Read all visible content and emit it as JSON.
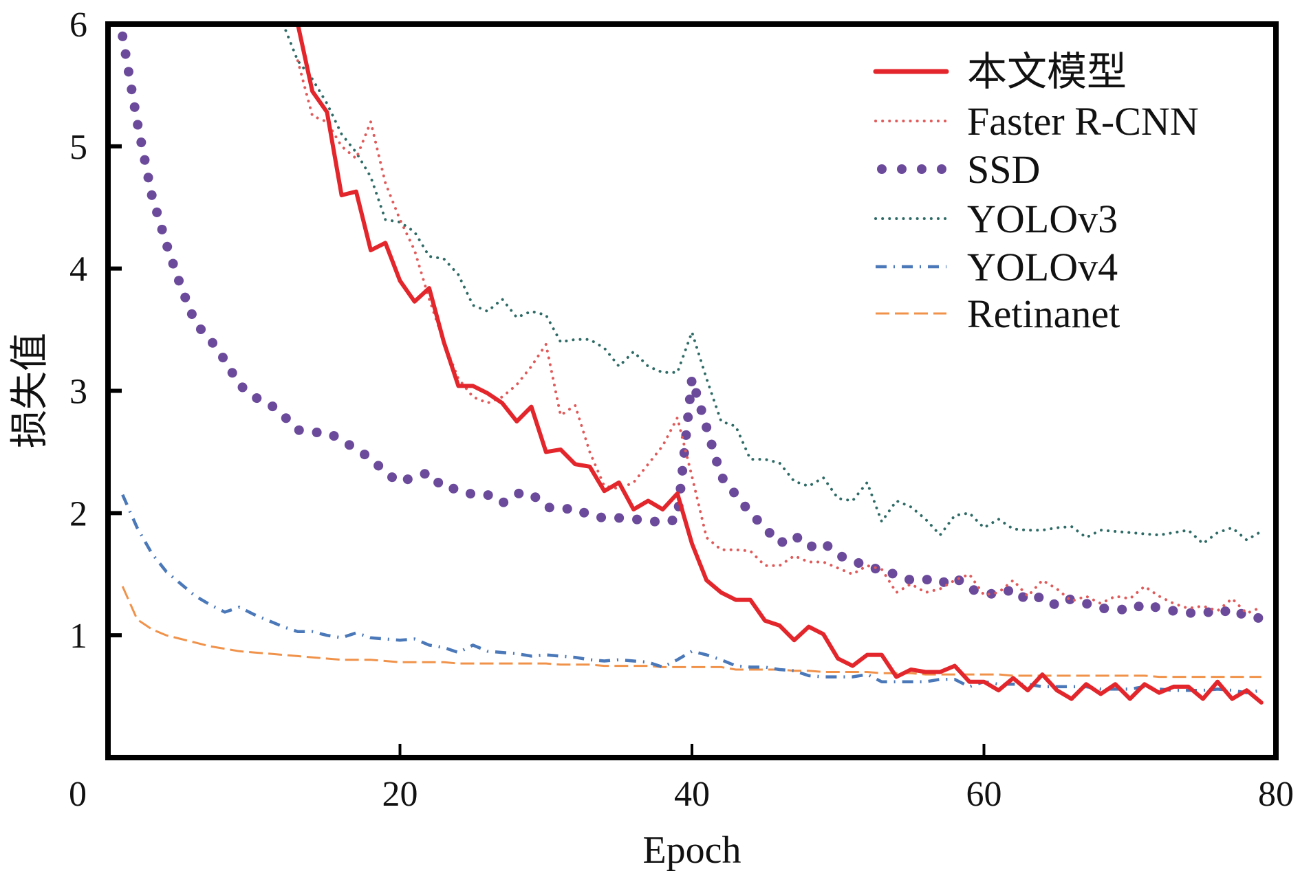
{
  "chart_data": {
    "type": "line",
    "title": "",
    "xlabel": "Epoch",
    "ylabel": "损失值",
    "xlim": [
      0,
      80
    ],
    "ylim": [
      0,
      6
    ],
    "xticks": [
      0,
      20,
      40,
      60,
      80
    ],
    "yticks": [
      1,
      2,
      3,
      4,
      5,
      6
    ],
    "grid": false,
    "legend_position": "top-right",
    "x": [
      1,
      2,
      3,
      4,
      5,
      6,
      7,
      8,
      9,
      10,
      11,
      12,
      13,
      14,
      15,
      16,
      17,
      18,
      19,
      20,
      21,
      22,
      23,
      24,
      25,
      26,
      27,
      28,
      29,
      30,
      31,
      32,
      33,
      34,
      35,
      36,
      37,
      38,
      39,
      40,
      41,
      42,
      43,
      44,
      45,
      46,
      47,
      48,
      49,
      50,
      51,
      52,
      53,
      54,
      55,
      56,
      57,
      58,
      59,
      60,
      61,
      62,
      63,
      64,
      65,
      66,
      67,
      68,
      69,
      70,
      71,
      72,
      73,
      74,
      75,
      76,
      77,
      78,
      79
    ],
    "series": [
      {
        "name": "本文模型",
        "color": "#e3262b",
        "style": "solid",
        "values": [
          null,
          null,
          null,
          null,
          null,
          null,
          null,
          null,
          null,
          null,
          null,
          null,
          6.0,
          5.45,
          5.28,
          4.6,
          4.63,
          4.15,
          4.21,
          3.9,
          3.73,
          3.84,
          3.4,
          3.04,
          3.04,
          2.98,
          2.9,
          2.75,
          2.87,
          2.5,
          2.52,
          2.4,
          2.38,
          2.18,
          2.25,
          2.03,
          2.1,
          2.03,
          2.16,
          1.75,
          1.45,
          1.35,
          1.29,
          1.29,
          1.12,
          1.08,
          0.96,
          1.07,
          1.01,
          0.81,
          0.75,
          0.84,
          0.84,
          0.66,
          0.72,
          0.7,
          0.7,
          0.75,
          0.62,
          0.62,
          0.55,
          0.65,
          0.55,
          0.68,
          0.55,
          0.48,
          0.6,
          0.52,
          0.6,
          0.48,
          0.6,
          0.53,
          0.58,
          0.58,
          0.48,
          0.62,
          0.48,
          0.55,
          0.45
        ]
      },
      {
        "name": "Faster R-CNN",
        "color": "#e05a5a",
        "style": "dotted",
        "values": [
          null,
          null,
          null,
          null,
          null,
          null,
          null,
          null,
          null,
          null,
          null,
          null,
          5.7,
          5.25,
          5.2,
          5.0,
          4.9,
          5.2,
          4.7,
          4.4,
          4.15,
          3.75,
          3.4,
          3.1,
          2.95,
          2.9,
          2.95,
          3.05,
          3.2,
          3.38,
          2.8,
          2.88,
          2.5,
          2.22,
          2.2,
          2.25,
          2.4,
          2.55,
          2.78,
          2.3,
          1.8,
          1.7,
          1.7,
          1.69,
          1.57,
          1.57,
          1.65,
          1.6,
          1.6,
          1.55,
          1.5,
          1.57,
          1.54,
          1.35,
          1.42,
          1.35,
          1.38,
          1.45,
          1.5,
          1.33,
          1.35,
          1.45,
          1.32,
          1.45,
          1.38,
          1.28,
          1.32,
          1.26,
          1.32,
          1.3,
          1.4,
          1.32,
          1.26,
          1.22,
          1.24,
          1.2,
          1.3,
          1.18,
          1.23
        ]
      },
      {
        "name": "SSD",
        "color": "#6b4a9b",
        "style": "large-dots",
        "values": [
          5.9,
          5.2,
          4.6,
          4.2,
          3.85,
          3.55,
          3.42,
          3.25,
          3.05,
          2.95,
          2.9,
          2.8,
          2.68,
          2.66,
          2.66,
          2.6,
          2.52,
          2.45,
          2.33,
          2.25,
          2.3,
          2.33,
          2.2,
          2.2,
          2.15,
          2.15,
          2.08,
          2.16,
          2.16,
          2.05,
          2.03,
          2.04,
          1.98,
          1.96,
          1.96,
          1.95,
          1.94,
          1.92,
          1.95,
          3.1,
          2.7,
          2.3,
          2.15,
          2.0,
          1.88,
          1.75,
          1.82,
          1.72,
          1.76,
          1.66,
          1.6,
          1.58,
          1.52,
          1.5,
          1.45,
          1.46,
          1.42,
          1.48,
          1.38,
          1.35,
          1.33,
          1.38,
          1.28,
          1.32,
          1.24,
          1.3,
          1.26,
          1.22,
          1.22,
          1.2,
          1.26,
          1.22,
          1.2,
          1.18,
          1.2,
          1.17,
          1.22,
          1.15,
          1.14
        ]
      },
      {
        "name": "YOLOv3",
        "color": "#2f6b66",
        "style": "dotted",
        "values": [
          null,
          null,
          null,
          null,
          null,
          null,
          null,
          null,
          null,
          null,
          null,
          6.0,
          5.7,
          5.55,
          5.35,
          5.1,
          4.95,
          4.75,
          4.4,
          4.38,
          4.3,
          4.1,
          4.08,
          3.95,
          3.7,
          3.65,
          3.75,
          3.6,
          3.65,
          3.62,
          3.4,
          3.42,
          3.42,
          3.35,
          3.2,
          3.32,
          3.2,
          3.15,
          3.15,
          3.48,
          3.1,
          2.75,
          2.71,
          2.44,
          2.44,
          2.41,
          2.26,
          2.22,
          2.29,
          2.12,
          2.1,
          2.25,
          1.93,
          2.1,
          2.05,
          1.95,
          1.82,
          1.98,
          2.0,
          1.88,
          1.95,
          1.87,
          1.86,
          1.86,
          1.88,
          1.89,
          1.8,
          1.86,
          1.85,
          1.84,
          1.83,
          1.82,
          1.84,
          1.86,
          1.75,
          1.84,
          1.88,
          1.78,
          1.85
        ]
      },
      {
        "name": "YOLOv4",
        "color": "#4a78b8",
        "style": "dashdot",
        "values": [
          2.15,
          1.88,
          1.67,
          1.52,
          1.42,
          1.32,
          1.25,
          1.19,
          1.23,
          1.17,
          1.12,
          1.07,
          1.03,
          1.03,
          1.0,
          0.98,
          1.02,
          0.98,
          0.97,
          0.96,
          0.97,
          0.92,
          0.9,
          0.86,
          0.92,
          0.87,
          0.86,
          0.85,
          0.83,
          0.84,
          0.83,
          0.82,
          0.8,
          0.79,
          0.8,
          0.79,
          0.78,
          0.74,
          0.8,
          0.87,
          0.84,
          0.8,
          0.75,
          0.74,
          0.74,
          0.72,
          0.71,
          0.67,
          0.66,
          0.66,
          0.66,
          0.68,
          0.62,
          0.62,
          0.62,
          0.62,
          0.64,
          0.64,
          0.58,
          0.62,
          0.6,
          0.6,
          0.6,
          0.58,
          0.58,
          0.58,
          0.58,
          0.56,
          0.56,
          0.56,
          0.58,
          0.56,
          0.55,
          0.55,
          0.55,
          0.56,
          0.55,
          0.53,
          0.55
        ]
      },
      {
        "name": "Retinanet",
        "color": "#f0924a",
        "style": "dashed",
        "values": [
          1.4,
          1.13,
          1.05,
          1.0,
          0.97,
          0.94,
          0.91,
          0.89,
          0.87,
          0.86,
          0.85,
          0.84,
          0.83,
          0.82,
          0.81,
          0.8,
          0.8,
          0.8,
          0.79,
          0.78,
          0.78,
          0.78,
          0.78,
          0.77,
          0.77,
          0.77,
          0.77,
          0.77,
          0.77,
          0.77,
          0.76,
          0.76,
          0.76,
          0.75,
          0.75,
          0.75,
          0.75,
          0.74,
          0.74,
          0.74,
          0.74,
          0.74,
          0.72,
          0.72,
          0.72,
          0.72,
          0.71,
          0.71,
          0.7,
          0.7,
          0.7,
          0.7,
          0.69,
          0.69,
          0.69,
          0.68,
          0.68,
          0.68,
          0.68,
          0.68,
          0.68,
          0.67,
          0.67,
          0.67,
          0.67,
          0.67,
          0.67,
          0.67,
          0.67,
          0.67,
          0.67,
          0.66,
          0.66,
          0.66,
          0.66,
          0.66,
          0.66,
          0.66,
          0.66
        ]
      }
    ]
  }
}
